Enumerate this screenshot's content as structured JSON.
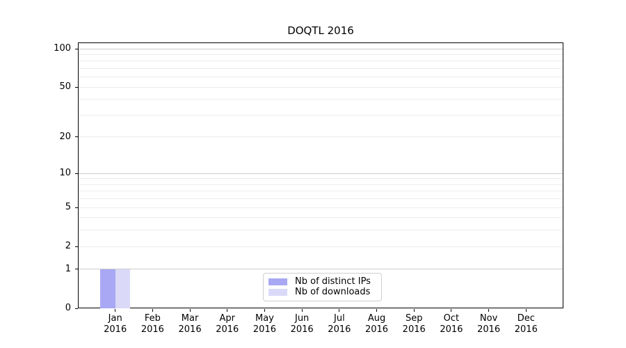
{
  "chart_data": {
    "type": "bar",
    "title": "DOQTL 2016",
    "xlabel": "",
    "ylabel": "",
    "categories": [
      "Jan 2016",
      "Feb 2016",
      "Mar 2016",
      "Apr 2016",
      "May 2016",
      "Jun 2016",
      "Jul 2016",
      "Aug 2016",
      "Sep 2016",
      "Oct 2016",
      "Nov 2016",
      "Dec 2016"
    ],
    "series": [
      {
        "name": "Nb of distinct IPs",
        "color": "#a8a8f4",
        "values": [
          1,
          0,
          0,
          0,
          0,
          0,
          0,
          0,
          0,
          0,
          0,
          0
        ]
      },
      {
        "name": "Nb of downloads",
        "color": "#dadaf8",
        "values": [
          1,
          0,
          0,
          0,
          0,
          0,
          0,
          0,
          0,
          0,
          0,
          0
        ]
      }
    ],
    "y_ticks": [
      0,
      1,
      2,
      5,
      10,
      20,
      50,
      100
    ],
    "scale": "log1p",
    "ylim": [
      0,
      112
    ],
    "grid": {
      "horizontal": true,
      "minor": true
    },
    "legend_position": "lower center"
  }
}
